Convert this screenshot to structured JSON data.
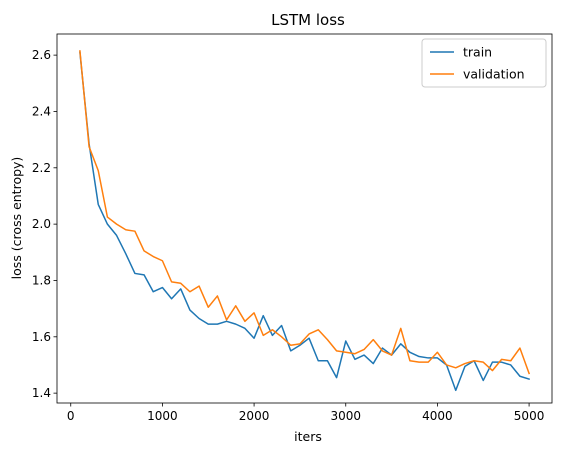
{
  "chart_data": {
    "type": "line",
    "title": "LSTM loss",
    "xlabel": "iters",
    "ylabel": "loss (cross entropy)",
    "xlim": [
      -150,
      5250
    ],
    "ylim": [
      1.365,
      2.675
    ],
    "x_ticks": [
      0,
      1000,
      2000,
      3000,
      4000,
      5000
    ],
    "y_ticks": [
      1.4,
      1.6,
      1.8,
      2.0,
      2.2,
      2.4,
      2.6
    ],
    "legend_position": "top-right",
    "x": [
      100,
      200,
      300,
      400,
      500,
      600,
      700,
      800,
      900,
      1000,
      1100,
      1200,
      1300,
      1400,
      1500,
      1600,
      1700,
      1800,
      1900,
      2000,
      2100,
      2200,
      2300,
      2400,
      2500,
      2600,
      2700,
      2800,
      2900,
      3000,
      3100,
      3200,
      3300,
      3400,
      3500,
      3600,
      3700,
      3800,
      3900,
      4000,
      4100,
      4200,
      4300,
      4400,
      4500,
      4600,
      4700,
      4800,
      4900,
      5000
    ],
    "series": [
      {
        "name": "train",
        "color": "#1f77b4",
        "values": [
          2.61,
          2.285,
          2.07,
          2.0,
          1.96,
          1.895,
          1.825,
          1.82,
          1.76,
          1.775,
          1.735,
          1.77,
          1.695,
          1.665,
          1.645,
          1.645,
          1.655,
          1.645,
          1.63,
          1.595,
          1.675,
          1.605,
          1.64,
          1.55,
          1.57,
          1.595,
          1.515,
          1.515,
          1.455,
          1.585,
          1.52,
          1.535,
          1.505,
          1.56,
          1.535,
          1.575,
          1.545,
          1.53,
          1.525,
          1.525,
          1.5,
          1.41,
          1.495,
          1.515,
          1.445,
          1.51,
          1.51,
          1.5,
          1.46,
          1.45
        ]
      },
      {
        "name": "validation",
        "color": "#ff7f0e",
        "values": [
          2.615,
          2.275,
          2.19,
          2.025,
          2.0,
          1.98,
          1.975,
          1.905,
          1.885,
          1.87,
          1.795,
          1.79,
          1.76,
          1.78,
          1.705,
          1.745,
          1.66,
          1.71,
          1.655,
          1.685,
          1.605,
          1.625,
          1.6,
          1.57,
          1.575,
          1.61,
          1.625,
          1.59,
          1.55,
          1.545,
          1.54,
          1.555,
          1.59,
          1.55,
          1.535,
          1.63,
          1.515,
          1.51,
          1.51,
          1.545,
          1.5,
          1.49,
          1.505,
          1.515,
          1.51,
          1.48,
          1.52,
          1.515,
          1.56,
          1.47
        ]
      }
    ]
  }
}
